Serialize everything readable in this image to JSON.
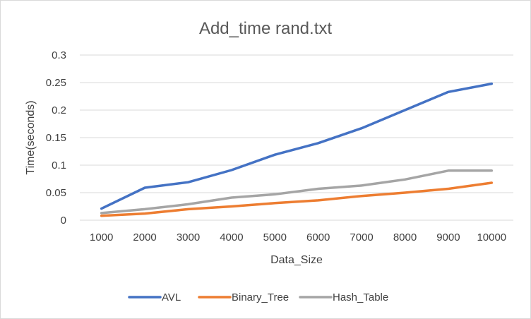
{
  "chart_data": {
    "type": "line",
    "title": "Add_time rand.txt",
    "xlabel": "Data_Size",
    "ylabel": "Time(seconds)",
    "categories": [
      "1000",
      "2000",
      "3000",
      "4000",
      "5000",
      "6000",
      "7000",
      "8000",
      "9000",
      "10000"
    ],
    "ylim": [
      0,
      0.3
    ],
    "yticks": [
      "0",
      "0.05",
      "0.1",
      "0.15",
      "0.2",
      "0.25",
      "0.3"
    ],
    "grid": true,
    "legend_position": "bottom",
    "series": [
      {
        "name": "AVL",
        "color": "#4472C4",
        "values": [
          0.021,
          0.059,
          0.069,
          0.091,
          0.119,
          0.14,
          0.167,
          0.2,
          0.233,
          0.248
        ]
      },
      {
        "name": "Binary_Tree",
        "color": "#ED7D31",
        "values": [
          0.008,
          0.012,
          0.02,
          0.025,
          0.031,
          0.036,
          0.044,
          0.05,
          0.057,
          0.068
        ]
      },
      {
        "name": "Hash_Table",
        "color": "#A5A5A5",
        "values": [
          0.013,
          0.02,
          0.029,
          0.041,
          0.047,
          0.057,
          0.063,
          0.074,
          0.09,
          0.09
        ]
      }
    ]
  }
}
